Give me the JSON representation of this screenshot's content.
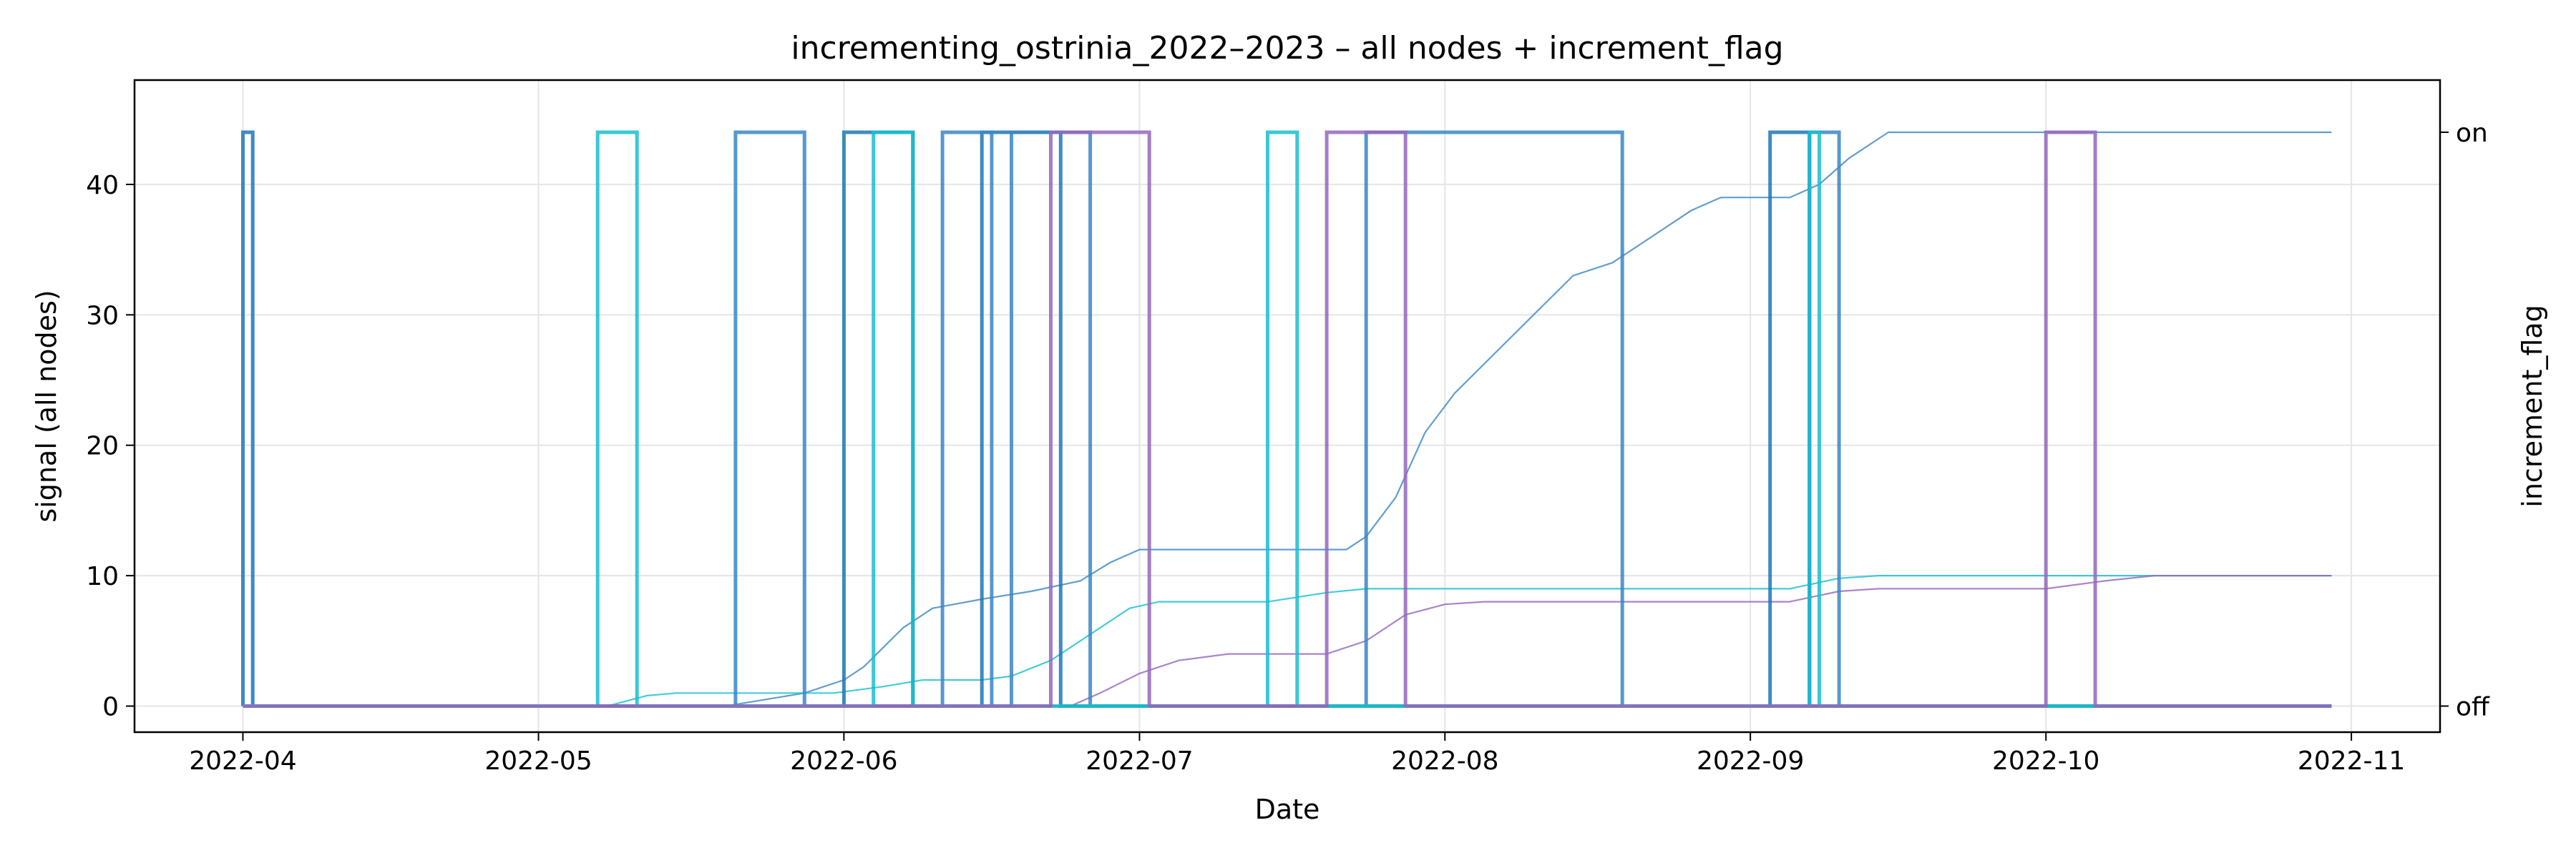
{
  "chart_data": {
    "type": "line",
    "title": "incrementing_ostrinia_2022–2023 – all nodes + increment_flag",
    "xlabel": "Date",
    "ylabel": "signal (all nodes)",
    "y2label": "increment_flag",
    "xlim": [
      "2022-03-21",
      "2022-11-10"
    ],
    "ylim": [
      -2,
      48
    ],
    "xticks": [
      "2022-04",
      "2022-05",
      "2022-06",
      "2022-07",
      "2022-08",
      "2022-09",
      "2022-10",
      "2022-11"
    ],
    "yticks": [
      0,
      10,
      20,
      30,
      40
    ],
    "y2ticks": [
      "off",
      "on"
    ],
    "grid": true,
    "colors": {
      "blue": "#1f77b4",
      "steel": "#3a86c4",
      "cyan": "#17becf",
      "purple": "#9467bd",
      "olive": "#bcbd22",
      "grid": "#e5e5e5"
    },
    "signal_series": [
      {
        "color": "#3a86c4",
        "points": [
          [
            "2022-04-01",
            0
          ],
          [
            "2022-05-20",
            0
          ],
          [
            "2022-05-28",
            1
          ],
          [
            "2022-06-01",
            2
          ],
          [
            "2022-06-03",
            3
          ],
          [
            "2022-06-07",
            6
          ],
          [
            "2022-06-10",
            7.5
          ],
          [
            "2022-06-15",
            8.2
          ],
          [
            "2022-06-20",
            8.8
          ],
          [
            "2022-06-25",
            9.6
          ],
          [
            "2022-06-28",
            11
          ],
          [
            "2022-07-01",
            12
          ],
          [
            "2022-07-10",
            12
          ],
          [
            "2022-07-22",
            12
          ],
          [
            "2022-07-24",
            13
          ],
          [
            "2022-07-27",
            16
          ],
          [
            "2022-07-30",
            21
          ],
          [
            "2022-08-02",
            24
          ],
          [
            "2022-08-06",
            27
          ],
          [
            "2022-08-10",
            30
          ],
          [
            "2022-08-14",
            33
          ],
          [
            "2022-08-18",
            34
          ],
          [
            "2022-08-22",
            36
          ],
          [
            "2022-08-26",
            38
          ],
          [
            "2022-08-29",
            39
          ],
          [
            "2022-09-05",
            39
          ],
          [
            "2022-09-08",
            40
          ],
          [
            "2022-09-11",
            42
          ],
          [
            "2022-09-15",
            44
          ],
          [
            "2022-10-30",
            44
          ]
        ]
      },
      {
        "color": "#17becf",
        "points": [
          [
            "2022-04-01",
            0
          ],
          [
            "2022-05-08",
            0
          ],
          [
            "2022-05-12",
            0.8
          ],
          [
            "2022-05-15",
            1
          ],
          [
            "2022-05-31",
            1
          ],
          [
            "2022-06-05",
            1.5
          ],
          [
            "2022-06-09",
            2
          ],
          [
            "2022-06-15",
            2
          ],
          [
            "2022-06-18",
            2.3
          ],
          [
            "2022-06-22",
            3.5
          ],
          [
            "2022-06-26",
            5.5
          ],
          [
            "2022-06-30",
            7.5
          ],
          [
            "2022-07-03",
            8
          ],
          [
            "2022-07-14",
            8
          ],
          [
            "2022-07-20",
            8.7
          ],
          [
            "2022-07-24",
            9
          ],
          [
            "2022-09-05",
            9
          ],
          [
            "2022-09-10",
            9.8
          ],
          [
            "2022-09-14",
            10
          ],
          [
            "2022-10-30",
            10
          ]
        ]
      },
      {
        "color": "#9467bd",
        "points": [
          [
            "2022-04-01",
            0
          ],
          [
            "2022-06-24",
            0
          ],
          [
            "2022-06-27",
            1
          ],
          [
            "2022-07-01",
            2.5
          ],
          [
            "2022-07-05",
            3.5
          ],
          [
            "2022-07-10",
            4
          ],
          [
            "2022-07-20",
            4
          ],
          [
            "2022-07-24",
            5
          ],
          [
            "2022-07-28",
            7
          ],
          [
            "2022-08-01",
            7.8
          ],
          [
            "2022-08-05",
            8
          ],
          [
            "2022-09-05",
            8
          ],
          [
            "2022-09-10",
            8.8
          ],
          [
            "2022-09-14",
            9
          ],
          [
            "2022-10-01",
            9
          ],
          [
            "2022-10-07",
            9.6
          ],
          [
            "2022-10-12",
            10
          ],
          [
            "2022-10-30",
            10
          ]
        ]
      }
    ],
    "increment_flag_series": [
      {
        "color": "#1f77b4",
        "on_intervals": [
          [
            "2022-04-01",
            "2022-04-02"
          ],
          [
            "2022-06-01",
            "2022-06-08"
          ],
          [
            "2022-06-15",
            "2022-06-23"
          ],
          [
            "2022-09-03",
            "2022-09-07"
          ]
        ]
      },
      {
        "color": "#3a86c4",
        "on_intervals": [
          [
            "2022-05-21",
            "2022-05-28"
          ],
          [
            "2022-06-11",
            "2022-06-16"
          ],
          [
            "2022-06-18",
            "2022-06-26"
          ],
          [
            "2022-07-24",
            "2022-08-19"
          ],
          [
            "2022-09-07",
            "2022-09-10"
          ]
        ]
      },
      {
        "color": "#17becf",
        "on_intervals": [
          [
            "2022-05-07",
            "2022-05-11"
          ],
          [
            "2022-06-04",
            "2022-06-08"
          ],
          [
            "2022-07-14",
            "2022-07-17"
          ],
          [
            "2022-09-07",
            "2022-09-08"
          ]
        ]
      },
      {
        "color": "#9467bd",
        "on_intervals": [
          [
            "2022-06-22",
            "2022-07-02"
          ],
          [
            "2022-07-20",
            "2022-07-28"
          ],
          [
            "2022-10-01",
            "2022-10-06"
          ]
        ]
      }
    ],
    "baseline_series": [
      {
        "color": "#bcbd22",
        "points": [
          [
            "2022-04-01",
            0
          ],
          [
            "2022-10-30",
            0
          ]
        ]
      }
    ]
  }
}
